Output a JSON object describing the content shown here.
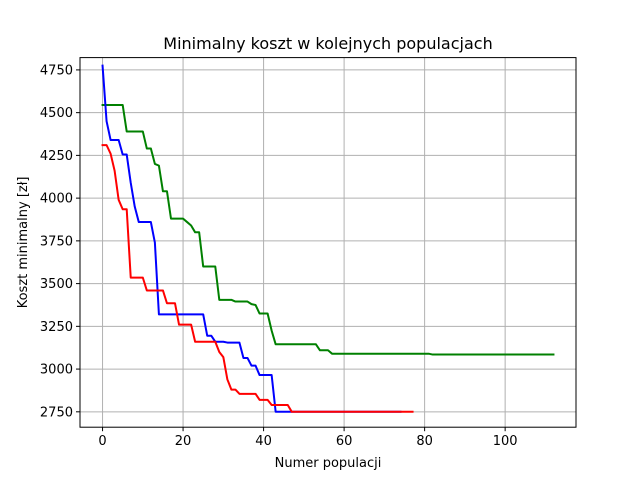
{
  "chart_data": {
    "type": "line",
    "title": "Minimalny koszt w kolejnych populacjach",
    "xlabel": "Numer populacji",
    "ylabel": "Koszt minimalny [zł]",
    "xlim": [
      -5.6,
      117.6
    ],
    "ylim": [
      2660,
      4822
    ],
    "xticks": [
      0,
      20,
      40,
      60,
      80,
      100
    ],
    "yticks": [
      2750,
      3000,
      3250,
      3500,
      3750,
      4000,
      4250,
      4500,
      4750
    ],
    "grid": true,
    "series": [
      {
        "name": "green",
        "color": "#008000",
        "points": [
          [
            0,
            4545
          ],
          [
            5,
            4545
          ],
          [
            6,
            4390
          ],
          [
            10,
            4390
          ],
          [
            11,
            4290
          ],
          [
            12,
            4290
          ],
          [
            13,
            4200
          ],
          [
            14,
            4190
          ],
          [
            15,
            4040
          ],
          [
            16,
            4040
          ],
          [
            17,
            3880
          ],
          [
            20,
            3880
          ],
          [
            21,
            3860
          ],
          [
            22,
            3840
          ],
          [
            23,
            3800
          ],
          [
            24,
            3800
          ],
          [
            25,
            3600
          ],
          [
            28,
            3600
          ],
          [
            29,
            3405
          ],
          [
            32,
            3405
          ],
          [
            33,
            3395
          ],
          [
            36,
            3395
          ],
          [
            37,
            3380
          ],
          [
            38,
            3375
          ],
          [
            39,
            3325
          ],
          [
            41,
            3325
          ],
          [
            42,
            3225
          ],
          [
            43,
            3145
          ],
          [
            53,
            3145
          ],
          [
            54,
            3110
          ],
          [
            56,
            3110
          ],
          [
            57,
            3090
          ],
          [
            81,
            3090
          ],
          [
            82,
            3085
          ],
          [
            112,
            3085
          ]
        ]
      },
      {
        "name": "blue",
        "color": "#0000ff",
        "points": [
          [
            0,
            4775
          ],
          [
            1,
            4450
          ],
          [
            2,
            4340
          ],
          [
            4,
            4340
          ],
          [
            5,
            4255
          ],
          [
            6,
            4255
          ],
          [
            7,
            4090
          ],
          [
            8,
            3950
          ],
          [
            9,
            3860
          ],
          [
            12,
            3860
          ],
          [
            13,
            3740
          ],
          [
            14,
            3320
          ],
          [
            25,
            3320
          ],
          [
            26,
            3195
          ],
          [
            27,
            3195
          ],
          [
            28,
            3160
          ],
          [
            30,
            3160
          ],
          [
            31,
            3155
          ],
          [
            34,
            3155
          ],
          [
            35,
            3065
          ],
          [
            36,
            3065
          ],
          [
            37,
            3020
          ],
          [
            38,
            3020
          ],
          [
            39,
            2965
          ],
          [
            42,
            2965
          ],
          [
            43,
            2750
          ],
          [
            74,
            2750
          ]
        ]
      },
      {
        "name": "red",
        "color": "#ff0000",
        "points": [
          [
            0,
            4310
          ],
          [
            1,
            4310
          ],
          [
            2,
            4260
          ],
          [
            3,
            4160
          ],
          [
            4,
            3990
          ],
          [
            5,
            3935
          ],
          [
            6,
            3935
          ],
          [
            7,
            3535
          ],
          [
            10,
            3535
          ],
          [
            11,
            3460
          ],
          [
            15,
            3460
          ],
          [
            16,
            3385
          ],
          [
            18,
            3385
          ],
          [
            19,
            3260
          ],
          [
            22,
            3260
          ],
          [
            23,
            3160
          ],
          [
            28,
            3160
          ],
          [
            29,
            3100
          ],
          [
            30,
            3070
          ],
          [
            31,
            2940
          ],
          [
            32,
            2880
          ],
          [
            33,
            2880
          ],
          [
            34,
            2855
          ],
          [
            38,
            2855
          ],
          [
            39,
            2820
          ],
          [
            41,
            2820
          ],
          [
            42,
            2790
          ],
          [
            46,
            2790
          ],
          [
            47,
            2750
          ],
          [
            77,
            2750
          ]
        ]
      }
    ]
  }
}
